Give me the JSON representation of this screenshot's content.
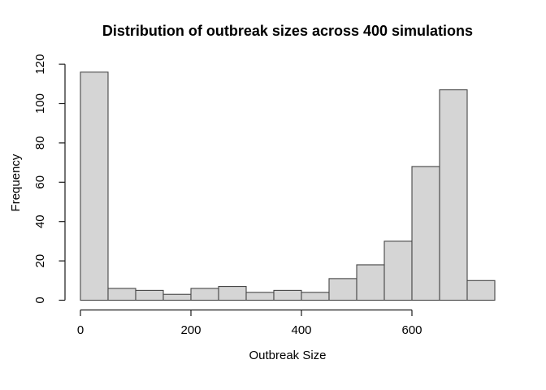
{
  "figure": {
    "background": "#ffffff"
  },
  "chart_data": {
    "type": "bar",
    "subtype": "histogram",
    "title": "Distribution of outbreak sizes across 400 simulations",
    "xlabel": "Outbreak Size",
    "ylabel": "Frequency",
    "total_simulations": 400,
    "bin_start": 0,
    "bin_width": 50,
    "categories": [
      "0-50",
      "50-100",
      "100-150",
      "150-200",
      "200-250",
      "250-300",
      "300-350",
      "350-400",
      "400-450",
      "450-500",
      "500-550",
      "550-600",
      "600-650",
      "650-700",
      "700-750"
    ],
    "counts": [
      116,
      6,
      5,
      3,
      6,
      7,
      4,
      5,
      4,
      11,
      18,
      30,
      68,
      107,
      10
    ],
    "xlim": [
      0,
      750
    ],
    "ylim": [
      0,
      120
    ],
    "x_ticks": [
      0,
      200,
      400,
      600
    ],
    "y_ticks": [
      0,
      20,
      40,
      60,
      80,
      100,
      120
    ],
    "grid": false,
    "legend": null,
    "colors": {
      "bar_fill": "#d5d5d5",
      "bar_border": "#464646",
      "axis": "#1a1a1a",
      "text": "#000000"
    }
  }
}
